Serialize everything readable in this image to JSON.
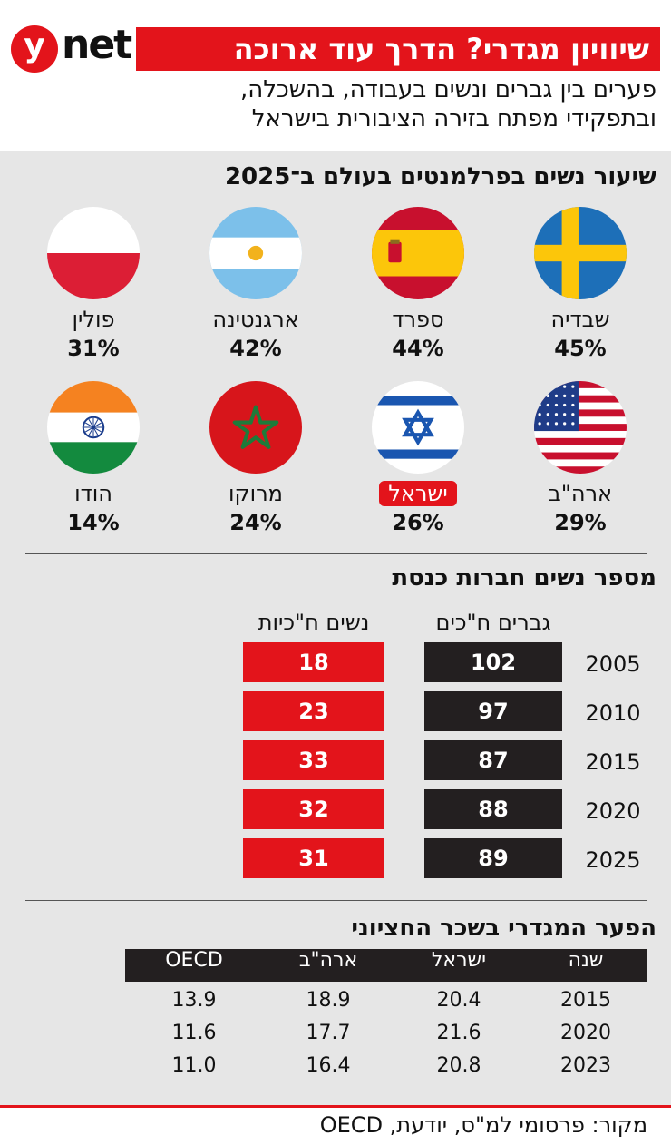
{
  "header": {
    "logo_letter": "y",
    "logo_text": "net",
    "title": "שיוויון מגדרי? הדרך עוד ארוכה",
    "subtitle_line1": "פערים בין גברים ונשים בעבודה, בהשכלה,",
    "subtitle_line2": "ובתפקידי מפתח בזירה הציבורית בישראל"
  },
  "colors": {
    "brand_red": "#e3141b",
    "dark": "#231f20",
    "panel_gray": "#e6e6e6"
  },
  "chart_data": [
    {
      "type": "table",
      "title": "שיעור נשים בפרלמנטים בעולם ב־2025",
      "rows": [
        {
          "country": "שבדיה",
          "value": "45%",
          "flag_icon": "sweden-flag-icon"
        },
        {
          "country": "ספרד",
          "value": "44%",
          "flag_icon": "spain-flag-icon"
        },
        {
          "country": "ארגנטינה",
          "value": "42%",
          "flag_icon": "argentina-flag-icon"
        },
        {
          "country": "פולין",
          "value": "31%",
          "flag_icon": "poland-flag-icon"
        },
        {
          "country": "ארה\"ב",
          "value": "29%",
          "flag_icon": "usa-flag-icon"
        },
        {
          "country": "ישראל",
          "value": "26%",
          "flag_icon": "israel-flag-icon",
          "highlighted": true
        },
        {
          "country": "מרוקו",
          "value": "24%",
          "flag_icon": "morocco-flag-icon"
        },
        {
          "country": "הודו",
          "value": "14%",
          "flag_icon": "india-flag-icon"
        }
      ]
    },
    {
      "type": "table",
      "title": "מספר נשים חברות כנסת",
      "columns": [
        "גברים ח\"כים",
        "נשים ח\"כיות"
      ],
      "rows": [
        {
          "year": "2005",
          "men": "102",
          "women": "18"
        },
        {
          "year": "2010",
          "men": "97",
          "women": "23"
        },
        {
          "year": "2015",
          "men": "87",
          "women": "33"
        },
        {
          "year": "2020",
          "men": "88",
          "women": "32"
        },
        {
          "year": "2025",
          "men": "89",
          "women": "31"
        }
      ]
    },
    {
      "type": "table",
      "title": "הפער המגדרי בשכר החציוני",
      "columns": [
        "שנה",
        "ישראל",
        "ארה\"ב",
        "OECD"
      ],
      "rows": [
        [
          "2015",
          "20.4",
          "18.9",
          "13.9"
        ],
        [
          "2020",
          "21.6",
          "17.7",
          "11.6"
        ],
        [
          "2023",
          "20.8",
          "16.4",
          "11.0"
        ]
      ]
    }
  ],
  "footer": {
    "source": "מקור: פרסומי למ\"ס, יודעת, OECD"
  }
}
